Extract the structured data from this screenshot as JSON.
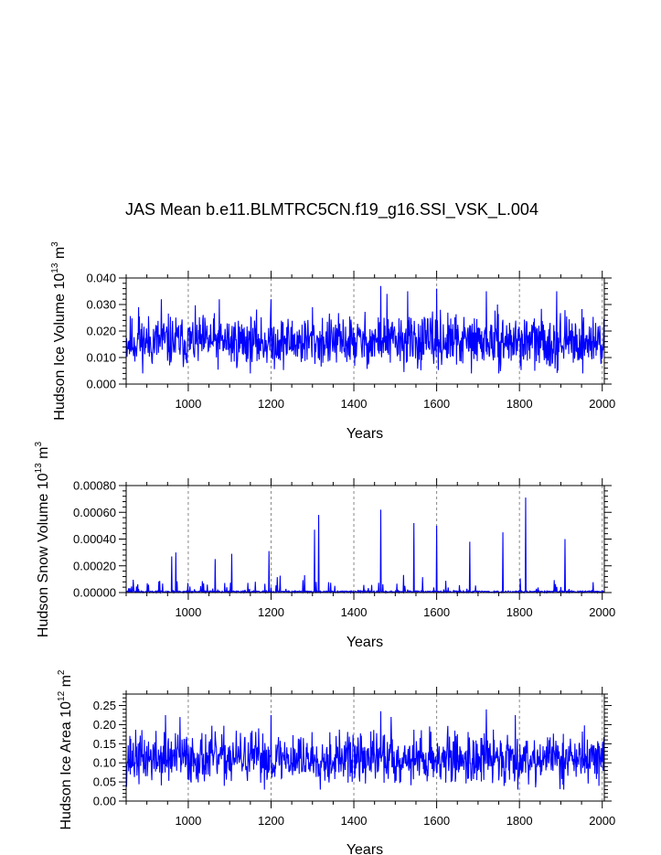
{
  "figure": {
    "title": "JAS Mean b.e11.BLMTRC5CN.f19_g16.SSI_VSK_L.004",
    "series_color": "#0000ff",
    "gridline_color": "#888888"
  },
  "chart_data": [
    {
      "type": "line",
      "title": "JAS Mean b.e11.BLMTRC5CN.f19_g16.SSI_VSK_L.004",
      "ylabel_parts": {
        "base": "Hudson Ice Volume 10",
        "exp": "13",
        "unit": " m",
        "unit_exp": "3"
      },
      "xlabel": "Years",
      "xlim": [
        850,
        2005
      ],
      "ylim": [
        0,
        0.04
      ],
      "xticks": [
        "1000",
        "1200",
        "1400",
        "1600",
        "1800",
        "2000"
      ],
      "yticks": [
        "0.000",
        "0.010",
        "0.020",
        "0.030",
        "0.040"
      ],
      "vlines": [
        1000,
        1200,
        1400,
        1600,
        1800,
        2000
      ],
      "series": [
        {
          "name": "Hudson Ice Volume",
          "x_start": 850,
          "x_end": 2005,
          "mean": 0.016,
          "noise": 0.0048,
          "min": 0.004,
          "max": 0.037,
          "seed": 11,
          "peaks": [
            [
              880,
              0.029
            ],
            [
              935,
              0.032
            ],
            [
              1075,
              0.032
            ],
            [
              1200,
              0.032
            ],
            [
              1300,
              0.029
            ],
            [
              1465,
              0.037
            ],
            [
              1480,
              0.034
            ],
            [
              1530,
              0.035
            ],
            [
              1600,
              0.036
            ],
            [
              1720,
              0.035
            ],
            [
              1890,
              0.035
            ]
          ]
        }
      ]
    },
    {
      "type": "line",
      "ylabel_parts": {
        "base": "Hudson Snow Volume 10",
        "exp": "13",
        "unit": " m",
        "unit_exp": "3"
      },
      "xlabel": "Years",
      "xlim": [
        850,
        2005
      ],
      "ylim": [
        0,
        0.0008
      ],
      "xticks": [
        "1000",
        "1200",
        "1400",
        "1600",
        "1800",
        "2000"
      ],
      "yticks": [
        "0.00000",
        "0.00020",
        "0.00040",
        "0.00060",
        "0.00080"
      ],
      "vlines": [
        1000,
        1200,
        1400,
        1600,
        1800,
        2000
      ],
      "series": [
        {
          "name": "Hudson Snow Volume",
          "x_start": 850,
          "x_end": 2005,
          "seed": 23,
          "spike_prob": 0.09,
          "spike_max": 0.00016,
          "peaks": [
            [
              960,
              0.00027
            ],
            [
              970,
              0.0003
            ],
            [
              1065,
              0.00025
            ],
            [
              1105,
              0.00029
            ],
            [
              1195,
              0.00031
            ],
            [
              1305,
              0.00047
            ],
            [
              1315,
              0.00058
            ],
            [
              1465,
              0.00062
            ],
            [
              1545,
              0.00052
            ],
            [
              1600,
              0.0005
            ],
            [
              1680,
              0.00038
            ],
            [
              1760,
              0.00045
            ],
            [
              1815,
              0.00071
            ],
            [
              1910,
              0.0004
            ]
          ]
        }
      ]
    },
    {
      "type": "line",
      "ylabel_parts": {
        "base": "Hudson Ice Area 10",
        "exp": "12",
        "unit": " m",
        "unit_exp": "2"
      },
      "xlabel": "Years",
      "xlim": [
        850,
        2005
      ],
      "ylim": [
        0,
        0.28
      ],
      "xticks": [
        "1000",
        "1200",
        "1400",
        "1600",
        "1800",
        "2000"
      ],
      "yticks": [
        "0.00",
        "0.05",
        "0.10",
        "0.15",
        "0.20",
        "0.25"
      ],
      "vlines": [
        1000,
        1200,
        1400,
        1600,
        1800,
        2000
      ],
      "series": [
        {
          "name": "Hudson Ice Area",
          "x_start": 850,
          "x_end": 2005,
          "mean": 0.112,
          "noise": 0.033,
          "min": 0.03,
          "max": 0.24,
          "seed": 37,
          "peaks": [
            [
              945,
              0.225
            ],
            [
              980,
              0.22
            ],
            [
              1200,
              0.225
            ],
            [
              1465,
              0.235
            ],
            [
              1490,
              0.22
            ],
            [
              1720,
              0.24
            ],
            [
              1790,
              0.225
            ]
          ]
        }
      ]
    }
  ]
}
